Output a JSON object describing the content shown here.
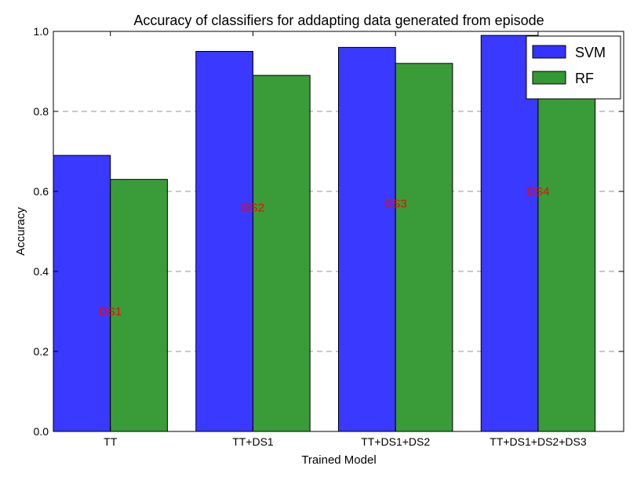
{
  "chart_data": {
    "type": "bar",
    "title": "Accuracy of classifiers for addapting data generated from episode",
    "xlabel": "Trained Model",
    "ylabel": "Accuracy",
    "categories": [
      "TT",
      "TT+DS1",
      "TT+DS1+DS2",
      "TT+DS1+DS2+DS3"
    ],
    "series": [
      {
        "name": "SVM",
        "values": [
          0.69,
          0.95,
          0.96,
          0.99
        ],
        "color": "#3333ff"
      },
      {
        "name": "RF",
        "values": [
          0.63,
          0.89,
          0.92,
          0.96
        ],
        "color": "#339933"
      }
    ],
    "ylim": [
      0.0,
      1.0
    ],
    "yticks": [
      "0.0",
      "0.2",
      "0.4",
      "0.6",
      "0.8",
      "1.0"
    ],
    "grid": "y-dashed",
    "legend": "top-right",
    "annotations": [
      {
        "text": "DS1",
        "category": "TT",
        "y": 0.3
      },
      {
        "text": "DS2",
        "category": "TT+DS1",
        "y": 0.56
      },
      {
        "text": "DS3",
        "category": "TT+DS1+DS2",
        "y": 0.57
      },
      {
        "text": "DS4",
        "category": "TT+DS1+DS2+DS3",
        "y": 0.6
      }
    ],
    "annotation_color": "#ff0000"
  }
}
